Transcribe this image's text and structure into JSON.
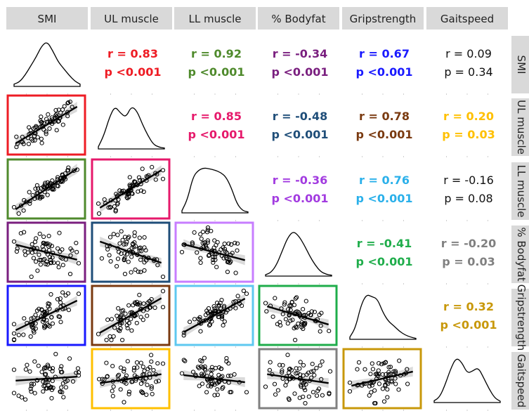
{
  "chart_data": {
    "type": "scatter-matrix",
    "variables": [
      "SMI",
      "UL muscle",
      "LL muscle",
      "% Bodyfat",
      "Gripstrength",
      "Gaitspeed"
    ],
    "row_labels": [
      "SMI",
      "UL muscle",
      "LL muscle",
      "% Bodyfat",
      "Gripstrength",
      "Gaitspeed"
    ],
    "correlations": [
      {
        "row": 0,
        "col": 1,
        "r": "r = 0.83",
        "p": "p <0.001",
        "color": "#ee1c24",
        "bold": true
      },
      {
        "row": 0,
        "col": 2,
        "r": "r = 0.92",
        "p": "p <0.001",
        "color": "#4f8a2c",
        "bold": true
      },
      {
        "row": 0,
        "col": 3,
        "r": "r = -0.34",
        "p": "p <0.001",
        "color": "#7a1f7f",
        "bold": true
      },
      {
        "row": 0,
        "col": 4,
        "r": "r = 0.67",
        "p": "p <0.001",
        "color": "#1a1aff",
        "bold": true
      },
      {
        "row": 0,
        "col": 5,
        "r": "r = 0.09",
        "p": "p = 0.34",
        "color": "#111111",
        "bold": false
      },
      {
        "row": 1,
        "col": 2,
        "r": "r = 0.85",
        "p": "p <0.001",
        "color": "#e6196b",
        "bold": true
      },
      {
        "row": 1,
        "col": 3,
        "r": "r = -0.48",
        "p": "p <0.001",
        "color": "#1f4e79",
        "bold": true
      },
      {
        "row": 1,
        "col": 4,
        "r": "r = 0.78",
        "p": "p <0.001",
        "color": "#7a3a10",
        "bold": true
      },
      {
        "row": 1,
        "col": 5,
        "r": "r = 0.20",
        "p": "p = 0.03",
        "color": "#ffc000",
        "bold": true
      },
      {
        "row": 2,
        "col": 3,
        "r": "r = -0.36",
        "p": "p <0.001",
        "color": "#a23be0",
        "bold": true
      },
      {
        "row": 2,
        "col": 4,
        "r": "r = 0.76",
        "p": "p <0.001",
        "color": "#2ab0ea",
        "bold": true
      },
      {
        "row": 2,
        "col": 5,
        "r": "r = -0.16",
        "p": "p = 0.08",
        "color": "#111111",
        "bold": false
      },
      {
        "row": 3,
        "col": 4,
        "r": "r = -0.41",
        "p": "p <0.001",
        "color": "#1fad4b",
        "bold": true
      },
      {
        "row": 3,
        "col": 5,
        "r": "r = -0.20",
        "p": "p = 0.03",
        "color": "#808080",
        "bold": true
      },
      {
        "row": 4,
        "col": 5,
        "r": "r = 0.32",
        "p": "p <0.001",
        "color": "#c8980a",
        "bold": true
      }
    ],
    "scatter_panels": [
      {
        "row": 1,
        "col": 0,
        "slope": 0.83,
        "color": "#ee1c24"
      },
      {
        "row": 2,
        "col": 0,
        "slope": 0.92,
        "color": "#4f8a2c"
      },
      {
        "row": 2,
        "col": 1,
        "slope": 0.85,
        "color": "#e6196b"
      },
      {
        "row": 3,
        "col": 0,
        "slope": -0.34,
        "color": "#7a1f7f"
      },
      {
        "row": 3,
        "col": 1,
        "slope": -0.48,
        "color": "#1f4e79"
      },
      {
        "row": 3,
        "col": 2,
        "slope": -0.36,
        "color": "#c77dff"
      },
      {
        "row": 4,
        "col": 0,
        "slope": 0.67,
        "color": "#1a1aff"
      },
      {
        "row": 4,
        "col": 1,
        "slope": 0.78,
        "color": "#7a3a10"
      },
      {
        "row": 4,
        "col": 2,
        "slope": 0.76,
        "color": "#5ec8f0"
      },
      {
        "row": 4,
        "col": 3,
        "slope": -0.41,
        "color": "#1fad4b"
      },
      {
        "row": 5,
        "col": 0,
        "slope": 0.09,
        "color": null
      },
      {
        "row": 5,
        "col": 1,
        "slope": 0.2,
        "color": "#ffc000"
      },
      {
        "row": 5,
        "col": 2,
        "slope": -0.16,
        "color": null
      },
      {
        "row": 5,
        "col": 3,
        "slope": -0.2,
        "color": "#808080"
      },
      {
        "row": 5,
        "col": 4,
        "slope": 0.32,
        "color": "#c8980a"
      }
    ],
    "density_shape": [
      [
        0.05,
        0.1,
        0.25,
        0.45,
        0.65,
        0.9,
        1.0,
        0.8,
        0.55,
        0.4,
        0.25,
        0.12,
        0.05
      ],
      [
        0.05,
        0.3,
        0.7,
        0.95,
        0.8,
        0.7,
        0.95,
        0.85,
        0.55,
        0.3,
        0.1,
        0.04,
        0.02
      ],
      [
        0.05,
        0.3,
        0.8,
        0.95,
        1.0,
        0.98,
        0.95,
        0.9,
        0.8,
        0.55,
        0.2,
        0.05,
        0.02
      ],
      [
        0.03,
        0.08,
        0.25,
        0.55,
        0.85,
        1.0,
        0.9,
        0.7,
        0.45,
        0.25,
        0.1,
        0.04,
        0.02
      ],
      [
        0.05,
        0.25,
        0.75,
        1.0,
        0.95,
        0.9,
        0.6,
        0.4,
        0.3,
        0.18,
        0.1,
        0.05,
        0.02
      ],
      [
        0.04,
        0.12,
        0.4,
        0.75,
        1.0,
        0.9,
        0.65,
        0.7,
        0.78,
        0.55,
        0.3,
        0.1,
        0.03
      ]
    ]
  }
}
